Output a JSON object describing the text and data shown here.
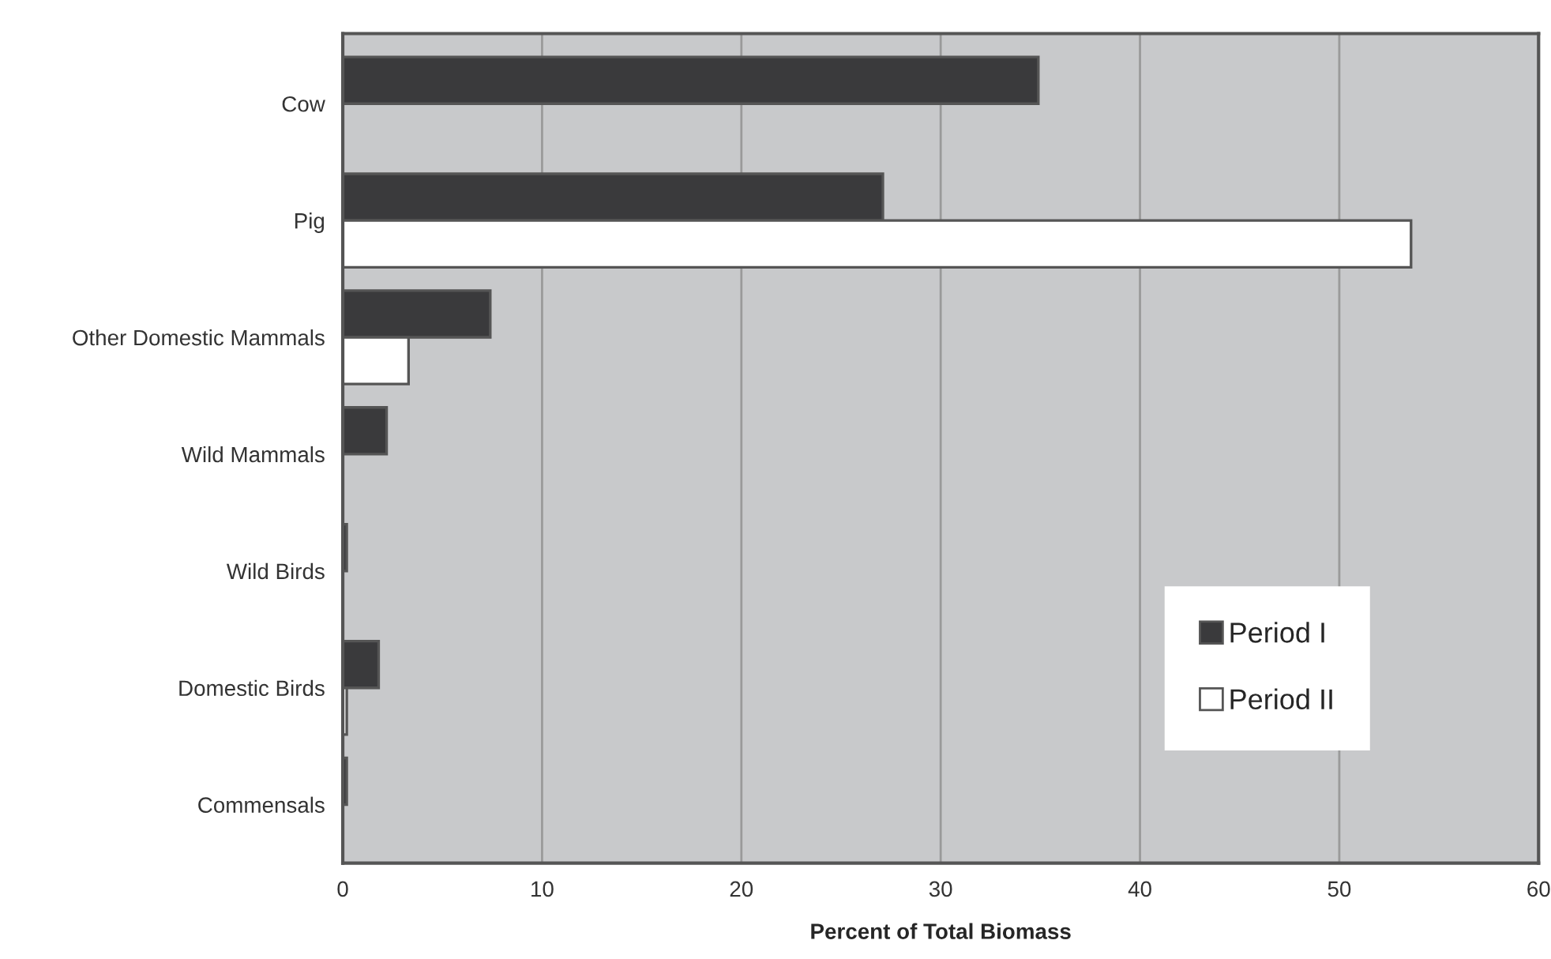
{
  "chart_data": {
    "type": "bar",
    "orientation": "horizontal",
    "xlabel": "Percent of Total Biomass",
    "categories": [
      "Cow",
      "Pig",
      "Other Domestic Mammals",
      "Wild Mammals",
      "Wild Birds",
      "Domestic Birds",
      "Commensals"
    ],
    "series": [
      {
        "name": "Period I",
        "color": "#3a3a3c",
        "values": [
          34.9,
          27.1,
          7.4,
          2.2,
          0.2,
          1.8,
          0.2
        ]
      },
      {
        "name": "Period II",
        "color": "#ffffff",
        "values": [
          null,
          53.6,
          3.3,
          null,
          null,
          0.2,
          null
        ]
      }
    ],
    "xlim": [
      0,
      60
    ],
    "xticks": [
      0,
      10,
      20,
      30,
      40,
      50,
      60
    ],
    "grid": "x",
    "legend": "bottom right"
  }
}
